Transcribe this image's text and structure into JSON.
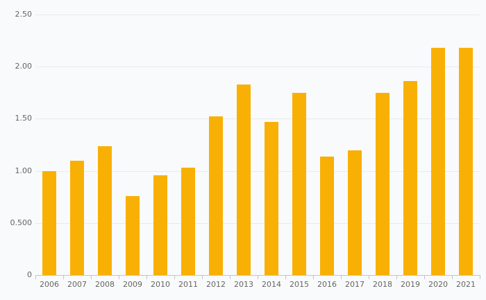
{
  "chart_data": {
    "type": "bar",
    "title": "",
    "xlabel": "",
    "ylabel": "",
    "categories": [
      "2006",
      "2007",
      "2008",
      "2009",
      "2010",
      "2011",
      "2012",
      "2013",
      "2014",
      "2015",
      "2016",
      "2017",
      "2018",
      "2019",
      "2020",
      "2021"
    ],
    "values": [
      1.0,
      1.1,
      1.24,
      0.76,
      0.96,
      1.03,
      1.52,
      1.83,
      1.47,
      1.75,
      1.14,
      1.2,
      1.75,
      1.86,
      2.18,
      2.18
    ],
    "ylim": [
      0,
      2.5
    ],
    "y_ticks": [
      {
        "value": 0,
        "label": "0"
      },
      {
        "value": 0.5,
        "label": "0.500"
      },
      {
        "value": 1.0,
        "label": "1.00"
      },
      {
        "value": 1.5,
        "label": "1.50"
      },
      {
        "value": 2.0,
        "label": "2.00"
      },
      {
        "value": 2.5,
        "label": "2.50"
      }
    ],
    "grid": true,
    "legend": "none",
    "colors": {
      "bar": "#f9b004",
      "axis": "#b9c6d8",
      "grid": "#e9eaec",
      "text": "#646464",
      "background": "#f9fafb"
    }
  }
}
